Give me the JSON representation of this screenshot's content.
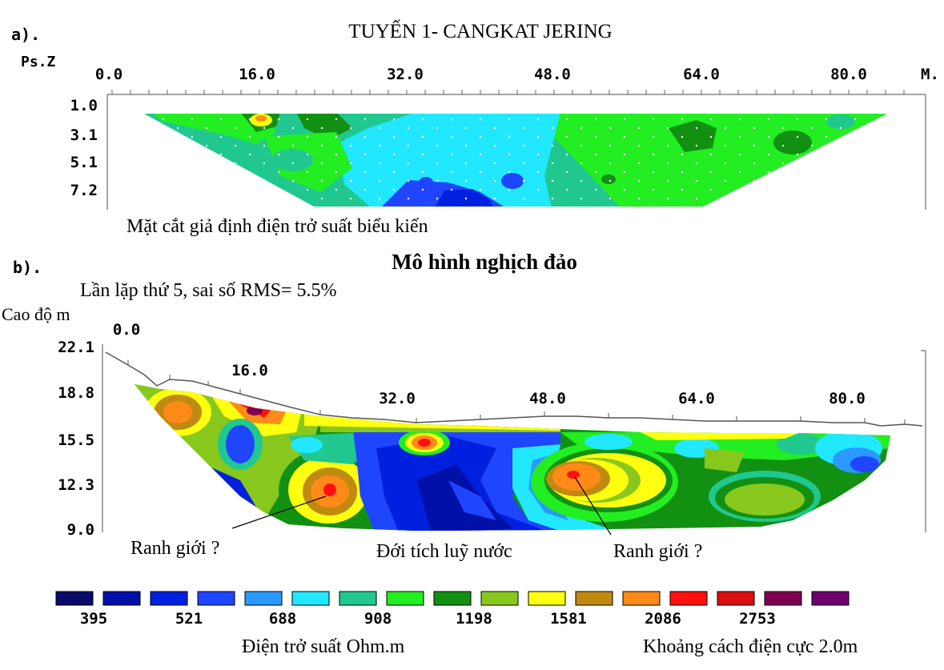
{
  "panel_a": {
    "letter": "a).",
    "title": "TUYẾN 1- CANGKAT JERING",
    "y_axis_label": "Ps.Z",
    "x_ticks": [
      "0.0",
      "16.0",
      "32.0",
      "48.0",
      "64.0",
      "80.0"
    ],
    "x_unit": "M.",
    "y_ticks": [
      "1.0",
      "3.1",
      "5.1",
      "7.2"
    ],
    "caption": "Mặt cắt giả định điện trở suất biểu kiến"
  },
  "panel_b": {
    "letter": "b).",
    "title": "Mô hình nghịch đảo",
    "subtitle": "Lần lặp thứ 5, sai số RMS= 5.5%",
    "y_axis_label": "Cao độ m",
    "x_ticks": [
      "0.0",
      "16.0",
      "32.0",
      "48.0",
      "64.0",
      "80.0"
    ],
    "y_ticks": [
      "22.1",
      "18.8",
      "15.5",
      "12.3",
      "9.0"
    ],
    "annotations": [
      "Ranh giới ?",
      "Đới tích luỹ nước",
      "Ranh giới ?"
    ]
  },
  "legend": {
    "colors": [
      "#0a0a6a",
      "#0010a8",
      "#0020e0",
      "#1f45ff",
      "#2a9aff",
      "#22e8ff",
      "#20c890",
      "#22ee22",
      "#129012",
      "#88c81c",
      "#ffff10",
      "#c08a10",
      "#ff8a18",
      "#ff1010",
      "#d81010",
      "#800050",
      "#700070"
    ],
    "values": [
      "395",
      "521",
      "688",
      "908",
      "1198",
      "1581",
      "2086",
      "2753"
    ],
    "caption_left": "Điện trở suất Ohm.m",
    "caption_right": "Khoảng cách điện cực 2.0m"
  }
}
